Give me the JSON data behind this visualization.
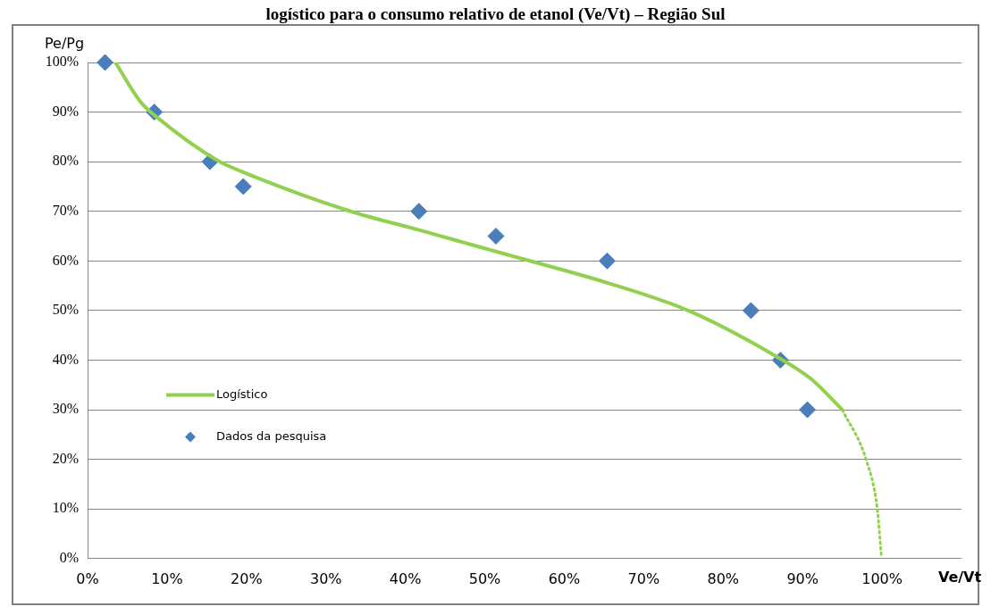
{
  "chart_data": {
    "type": "line",
    "title": "logístico para o consumo relativo de etanol (Ve/Vt) – Região Sul",
    "xlabel": "Ve/Vt",
    "ylabel": "Pe/Pg",
    "xlim": [
      0,
      110
    ],
    "xticks": [
      {
        "value": 0,
        "label": "0%"
      },
      {
        "value": 10,
        "label": "10%"
      },
      {
        "value": 20,
        "label": "20%"
      },
      {
        "value": 30,
        "label": "30%"
      },
      {
        "value": 40,
        "label": "40%"
      },
      {
        "value": 50,
        "label": "50%"
      },
      {
        "value": 60,
        "label": "60%"
      },
      {
        "value": 70,
        "label": "70%"
      },
      {
        "value": 80,
        "label": "80%"
      },
      {
        "value": 90,
        "label": "90%"
      },
      {
        "value": 100,
        "label": "100%"
      }
    ],
    "ylim": [
      0,
      100
    ],
    "yticks": [
      {
        "value": 0,
        "label": "0%"
      },
      {
        "value": 10,
        "label": "10%"
      },
      {
        "value": 20,
        "label": "20%"
      },
      {
        "value": 30,
        "label": "30%"
      },
      {
        "value": 40,
        "label": "40%"
      },
      {
        "value": 50,
        "label": "50%"
      },
      {
        "value": 60,
        "label": "60%"
      },
      {
        "value": 70,
        "label": "70%"
      },
      {
        "value": 80,
        "label": "80%"
      },
      {
        "value": 90,
        "label": "90%"
      },
      {
        "value": 100,
        "label": "100%"
      }
    ],
    "grid": "y",
    "legend": "left",
    "series": [
      {
        "name": "Logístico",
        "color": "#92d050",
        "marker": "none",
        "line_style": "solid",
        "x": [
          3.5,
          6.7,
          8.7,
          16.3,
          20.2,
          33.1,
          41.8,
          52.5,
          65.6,
          75.6,
          86,
          91,
          95
        ],
        "values": [
          100,
          92,
          89,
          80.3,
          77.5,
          70,
          66.2,
          61.4,
          55.5,
          50,
          41.4,
          36.3,
          30
        ]
      },
      {
        "color": "#92d050",
        "marker": "none",
        "line_style": "dotted",
        "x": [
          95,
          98,
          99.4,
          99.9
        ],
        "values": [
          30,
          19.9,
          10,
          0.7
        ]
      },
      {
        "name": "Dados da pesquisa",
        "type": "scatter",
        "color": "#4a7ebb",
        "marker": "diamond",
        "x": [
          2.2,
          8.4,
          15.4,
          19.6,
          41.7,
          51.4,
          65.4,
          83.5,
          87.2,
          90.6
        ],
        "values": [
          100,
          90,
          80,
          75,
          70,
          65,
          60,
          50,
          40,
          30
        ]
      }
    ]
  }
}
